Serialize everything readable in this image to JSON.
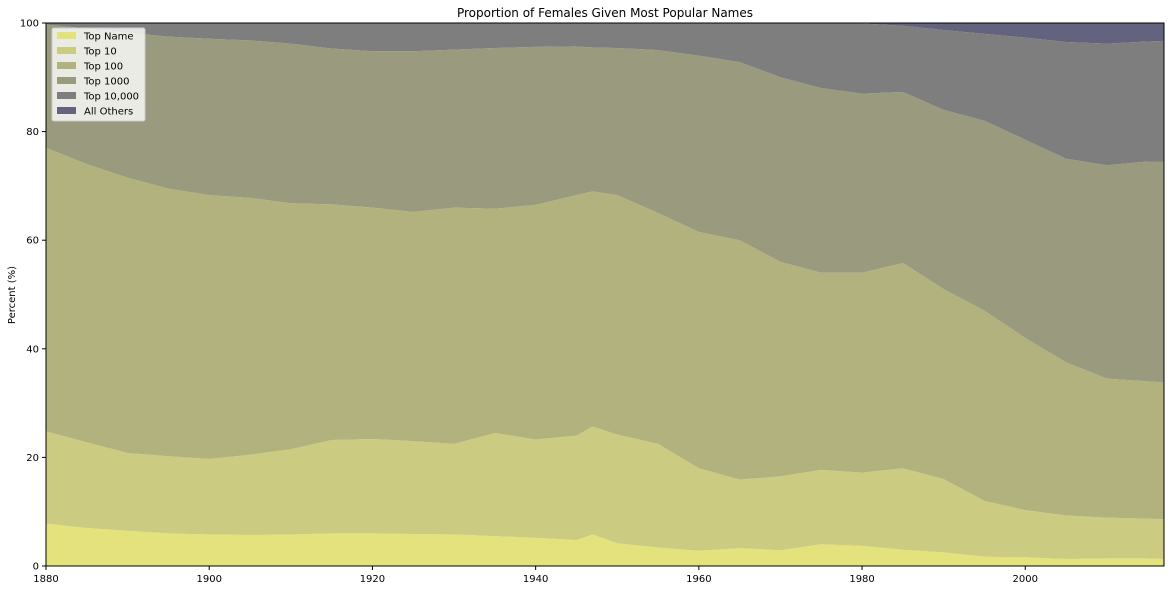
{
  "chart_data": {
    "type": "area",
    "stacked": true,
    "title": "Proportion of Females Given Most Popular Names",
    "xlabel": "",
    "ylabel": "Percent (%)",
    "xlim": [
      1880,
      2017
    ],
    "ylim": [
      0,
      100
    ],
    "x_ticks": [
      1880,
      1900,
      1920,
      1940,
      1960,
      1980,
      2000
    ],
    "y_ticks": [
      0,
      20,
      40,
      60,
      80,
      100
    ],
    "grid": false,
    "legend_position": "top-left",
    "x": [
      1880,
      1885,
      1890,
      1895,
      1900,
      1905,
      1910,
      1915,
      1920,
      1925,
      1930,
      1935,
      1940,
      1945,
      1947,
      1950,
      1955,
      1960,
      1965,
      1970,
      1975,
      1980,
      1985,
      1990,
      1995,
      2000,
      2005,
      2010,
      2015,
      2017
    ],
    "series": [
      {
        "name": "Top Name",
        "color": "#e3e27d",
        "cumulative": [
          7.8,
          7.0,
          6.5,
          6.0,
          5.8,
          5.7,
          5.8,
          6.0,
          6.0,
          5.9,
          5.8,
          5.5,
          5.2,
          4.8,
          5.8,
          4.2,
          3.4,
          2.8,
          3.3,
          2.9,
          4.0,
          3.7,
          3.0,
          2.5,
          1.7,
          1.6,
          1.3,
          1.4,
          1.4,
          1.3
        ]
      },
      {
        "name": "Top 10",
        "color": "#cbcb82",
        "cumulative": [
          24.8,
          22.8,
          20.8,
          20.2,
          19.7,
          20.5,
          21.5,
          23.2,
          23.4,
          23.0,
          22.5,
          24.5,
          23.3,
          24.0,
          25.7,
          24.2,
          22.5,
          18.0,
          15.9,
          16.5,
          17.7,
          17.2,
          18.0,
          16.0,
          12.0,
          10.3,
          9.3,
          8.9,
          8.7,
          8.6
        ]
      },
      {
        "name": "Top 100",
        "color": "#b2b27e",
        "cumulative": [
          77.0,
          74.0,
          71.5,
          69.5,
          68.3,
          67.8,
          66.8,
          66.6,
          66.0,
          65.2,
          66.0,
          65.8,
          66.5,
          68.3,
          69.0,
          68.3,
          65.0,
          61.5,
          60.0,
          56.0,
          54.0,
          54.0,
          55.8,
          51.0,
          47.0,
          42.0,
          37.5,
          34.5,
          34.0,
          33.8
        ]
      },
      {
        "name": "Top 1000",
        "color": "#9a9a7e",
        "cumulative": [
          99.7,
          99.0,
          98.2,
          97.5,
          97.1,
          96.8,
          96.2,
          95.3,
          94.8,
          94.8,
          95.1,
          95.4,
          95.6,
          95.7,
          95.5,
          95.4,
          95.0,
          94.0,
          92.8,
          90.0,
          88.0,
          87.0,
          87.3,
          84.0,
          82.0,
          78.5,
          75.0,
          73.8,
          74.5,
          74.5
        ]
      },
      {
        "name": "Top 10,000",
        "color": "#7e7e7e",
        "cumulative": [
          100,
          100,
          100,
          100,
          100,
          100,
          100,
          100,
          100,
          100,
          100,
          100,
          100,
          100,
          100,
          100,
          100,
          100,
          100,
          100,
          100,
          99.9,
          99.5,
          98.7,
          98.0,
          97.3,
          96.5,
          96.2,
          96.6,
          96.7
        ]
      },
      {
        "name": "All Others",
        "color": "#636380",
        "cumulative": [
          100,
          100,
          100,
          100,
          100,
          100,
          100,
          100,
          100,
          100,
          100,
          100,
          100,
          100,
          100,
          100,
          100,
          100,
          100,
          100,
          100,
          100,
          100,
          100,
          100,
          100,
          100,
          100,
          100,
          100
        ]
      }
    ]
  }
}
